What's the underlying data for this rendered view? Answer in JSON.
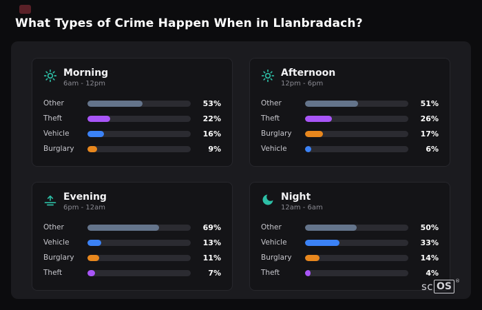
{
  "title": "What Types of Crime Happen When in Llanbradach?",
  "logo": {
    "prefix": "sc",
    "boxed": "OS",
    "reg": "®"
  },
  "colors": {
    "accent_teal": "#2dbfa6",
    "other": "#64748b",
    "theft": "#a855f7",
    "vehicle": "#3b82f6",
    "burglary": "#e8871d",
    "background": "#0c0c0e",
    "panel": "#1b1b1f",
    "card": "#141417",
    "track": "#2b2b31"
  },
  "chart_data": [
    {
      "type": "bar",
      "orientation": "horizontal",
      "title": "Morning",
      "subtitle": "6am - 12pm",
      "icon": "sun-icon",
      "categories": [
        "Other",
        "Theft",
        "Vehicle",
        "Burglary"
      ],
      "values": [
        53,
        22,
        16,
        9
      ],
      "value_labels": [
        "53%",
        "22%",
        "16%",
        "9%"
      ],
      "colors": [
        "#64748b",
        "#a855f7",
        "#3b82f6",
        "#e8871d"
      ],
      "xlim": [
        0,
        100
      ]
    },
    {
      "type": "bar",
      "orientation": "horizontal",
      "title": "Afternoon",
      "subtitle": "12pm - 6pm",
      "icon": "sun-icon",
      "categories": [
        "Other",
        "Theft",
        "Burglary",
        "Vehicle"
      ],
      "values": [
        51,
        26,
        17,
        6
      ],
      "value_labels": [
        "51%",
        "26%",
        "17%",
        "6%"
      ],
      "colors": [
        "#64748b",
        "#a855f7",
        "#e8871d",
        "#3b82f6"
      ],
      "xlim": [
        0,
        100
      ]
    },
    {
      "type": "bar",
      "orientation": "horizontal",
      "title": "Evening",
      "subtitle": "6pm - 12am",
      "icon": "sunset-icon",
      "categories": [
        "Other",
        "Vehicle",
        "Burglary",
        "Theft"
      ],
      "values": [
        69,
        13,
        11,
        7
      ],
      "value_labels": [
        "69%",
        "13%",
        "11%",
        "7%"
      ],
      "colors": [
        "#64748b",
        "#3b82f6",
        "#e8871d",
        "#a855f7"
      ],
      "xlim": [
        0,
        100
      ]
    },
    {
      "type": "bar",
      "orientation": "horizontal",
      "title": "Night",
      "subtitle": "12am - 6am",
      "icon": "moon-icon",
      "categories": [
        "Other",
        "Vehicle",
        "Burglary",
        "Theft"
      ],
      "values": [
        50,
        33,
        14,
        4
      ],
      "value_labels": [
        "50%",
        "33%",
        "14%",
        "4%"
      ],
      "colors": [
        "#64748b",
        "#3b82f6",
        "#e8871d",
        "#a855f7"
      ],
      "xlim": [
        0,
        100
      ]
    }
  ]
}
